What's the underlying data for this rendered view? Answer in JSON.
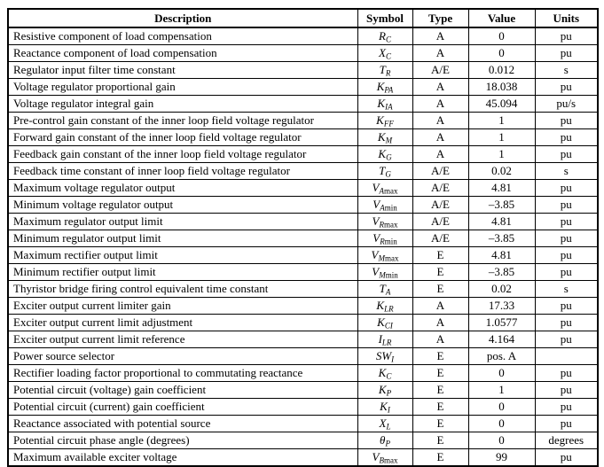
{
  "table": {
    "headers": {
      "description": "Description",
      "symbol": "Symbol",
      "type": "Type",
      "value": "Value",
      "units": "Units"
    },
    "rows": [
      {
        "desc": "Resistive component of load compensation",
        "sym_base": "R",
        "sym_sub_i": "C",
        "sym_sub_r": "",
        "type": "A",
        "value": "0",
        "units": "pu"
      },
      {
        "desc": "Reactance component of load compensation",
        "sym_base": "X",
        "sym_sub_i": "C",
        "sym_sub_r": "",
        "type": "A",
        "value": "0",
        "units": "pu"
      },
      {
        "desc": "Regulator input filter time constant",
        "sym_base": "T",
        "sym_sub_i": "R",
        "sym_sub_r": "",
        "type": "A/E",
        "value": "0.012",
        "units": "s"
      },
      {
        "desc": "Voltage regulator proportional gain",
        "sym_base": "K",
        "sym_sub_i": "PA",
        "sym_sub_r": "",
        "type": "A",
        "value": "18.038",
        "units": "pu"
      },
      {
        "desc": "Voltage regulator integral gain",
        "sym_base": "K",
        "sym_sub_i": "IA",
        "sym_sub_r": "",
        "type": "A",
        "value": "45.094",
        "units": "pu/s"
      },
      {
        "desc": "Pre-control gain constant of the inner loop field voltage regulator",
        "sym_base": "K",
        "sym_sub_i": "FF",
        "sym_sub_r": "",
        "type": "A",
        "value": "1",
        "units": "pu"
      },
      {
        "desc": "Forward gain constant of the inner loop field voltage regulator",
        "sym_base": "K",
        "sym_sub_i": "M",
        "sym_sub_r": "",
        "type": "A",
        "value": "1",
        "units": "pu"
      },
      {
        "desc": "Feedback gain constant of the inner loop field voltage regulator",
        "sym_base": "K",
        "sym_sub_i": "G",
        "sym_sub_r": "",
        "type": "A",
        "value": "1",
        "units": "pu"
      },
      {
        "desc": "Feedback time constant of inner loop field voltage regulator",
        "sym_base": "T",
        "sym_sub_i": "G",
        "sym_sub_r": "",
        "type": "A/E",
        "value": "0.02",
        "units": "s"
      },
      {
        "desc": "Maximum voltage regulator output",
        "sym_base": "V",
        "sym_sub_i": "A",
        "sym_sub_r": "max",
        "type": "A/E",
        "value": "4.81",
        "units": "pu"
      },
      {
        "desc": "Minimum voltage regulator output",
        "sym_base": "V",
        "sym_sub_i": "A",
        "sym_sub_r": "min",
        "type": "A/E",
        "value": "–3.85",
        "units": "pu"
      },
      {
        "desc": "Maximum regulator output limit",
        "sym_base": "V",
        "sym_sub_i": "R",
        "sym_sub_r": "max",
        "type": "A/E",
        "value": "4.81",
        "units": "pu"
      },
      {
        "desc": "Minimum regulator output limit",
        "sym_base": "V",
        "sym_sub_i": "R",
        "sym_sub_r": "min",
        "type": "A/E",
        "value": "–3.85",
        "units": "pu"
      },
      {
        "desc": "Maximum rectifier output limit",
        "sym_base": "V",
        "sym_sub_i": "M",
        "sym_sub_r": "max",
        "type": "E",
        "value": "4.81",
        "units": "pu"
      },
      {
        "desc": "Minimum rectifier output limit",
        "sym_base": "V",
        "sym_sub_i": "M",
        "sym_sub_r": "min",
        "type": "E",
        "value": "–3.85",
        "units": "pu"
      },
      {
        "desc": "Thyristor bridge firing control equivalent time constant",
        "sym_base": "T",
        "sym_sub_i": "A",
        "sym_sub_r": "",
        "type": "E",
        "value": "0.02",
        "units": "s"
      },
      {
        "desc": "Exciter output current limiter gain",
        "sym_base": "K",
        "sym_sub_i": "LR",
        "sym_sub_r": "",
        "type": "A",
        "value": "17.33",
        "units": "pu"
      },
      {
        "desc": "Exciter output current limit adjustment",
        "sym_base": "K",
        "sym_sub_i": "CI",
        "sym_sub_r": "",
        "type": "A",
        "value": "1.0577",
        "units": "pu"
      },
      {
        "desc": "Exciter output current limit reference",
        "sym_base": "I",
        "sym_sub_i": "LR",
        "sym_sub_r": "",
        "type": "A",
        "value": "4.164",
        "units": "pu"
      },
      {
        "desc": "Power source selector",
        "sym_base": "SW",
        "sym_sub_i": "I",
        "sym_sub_r": "",
        "type": "E",
        "value": "pos. A",
        "units": ""
      },
      {
        "desc": "Rectifier loading factor proportional to commutating reactance",
        "sym_base": "K",
        "sym_sub_i": "C",
        "sym_sub_r": "",
        "type": "E",
        "value": "0",
        "units": "pu"
      },
      {
        "desc": "Potential circuit (voltage) gain coefficient",
        "sym_base": "K",
        "sym_sub_i": "P",
        "sym_sub_r": "",
        "type": "E",
        "value": "1",
        "units": "pu"
      },
      {
        "desc": "Potential circuit (current) gain coefficient",
        "sym_base": "K",
        "sym_sub_i": "I",
        "sym_sub_r": "",
        "type": "E",
        "value": "0",
        "units": "pu"
      },
      {
        "desc": "Reactance associated with potential source",
        "sym_base": "X",
        "sym_sub_i": "L",
        "sym_sub_r": "",
        "type": "E",
        "value": "0",
        "units": "pu"
      },
      {
        "desc": "Potential circuit phase angle (degrees)",
        "sym_base": "θ",
        "sym_sub_i": "P",
        "sym_sub_r": "",
        "type": "E",
        "value": "0",
        "units": "degrees"
      },
      {
        "desc": "Maximum available exciter voltage",
        "sym_base": "V",
        "sym_sub_i": "B",
        "sym_sub_r": "max",
        "type": "E",
        "value": "99",
        "units": "pu"
      }
    ]
  }
}
